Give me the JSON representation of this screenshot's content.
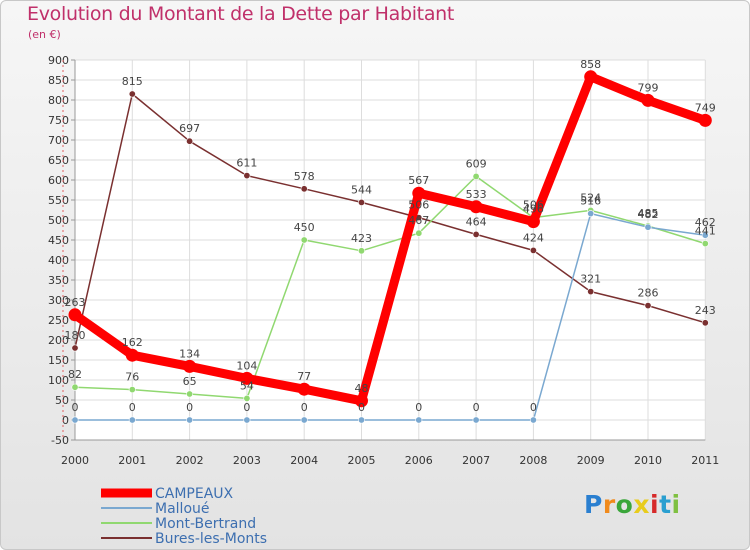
{
  "title": "Evolution du Montant de la Dette par Habitant",
  "unit": "(en €)",
  "logo": {
    "text": "Proxiti",
    "colors": [
      "#2a7fd0",
      "#f08a1c",
      "#3aa63a",
      "#e8cc1c",
      "#d62a2a",
      "#2a9fd0",
      "#7fc041"
    ]
  },
  "chart_data": {
    "type": "line",
    "title": "Evolution du Montant de la Dette par Habitant",
    "ylabel": "(en €)",
    "xlabel": "",
    "ylim": [
      -50,
      900
    ],
    "yticks": [
      -50,
      0,
      50,
      100,
      150,
      200,
      250,
      300,
      350,
      400,
      450,
      500,
      550,
      600,
      650,
      700,
      750,
      800,
      850,
      900
    ],
    "categories": [
      "2000",
      "2001",
      "2002",
      "2003",
      "2004",
      "2005",
      "2006",
      "2007",
      "2008",
      "2009",
      "2010",
      "2011"
    ],
    "series": [
      {
        "name": "Bures-les-Monts",
        "color": "#7a3030",
        "width": 1.5,
        "values": [
          180,
          815,
          697,
          611,
          578,
          544,
          506,
          464,
          424,
          321,
          286,
          243
        ]
      },
      {
        "name": "Mont-Bertrand",
        "color": "#90d870",
        "width": 1.5,
        "values": [
          82,
          76,
          65,
          54,
          450,
          423,
          467,
          609,
          506,
          524,
          485,
          441
        ]
      },
      {
        "name": "Malloué",
        "color": "#7aa8d0",
        "width": 1.5,
        "values": [
          0,
          0,
          0,
          0,
          0,
          0,
          0,
          0,
          0,
          516,
          482,
          462
        ]
      },
      {
        "name": "CAMPEAUX",
        "color": "#ff0000",
        "width": 9,
        "values": [
          263,
          162,
          134,
          104,
          77,
          48,
          567,
          533,
          496,
          858,
          799,
          749
        ]
      }
    ],
    "legend": [
      {
        "name": "CAMPEAUX",
        "color": "#ff0000"
      },
      {
        "name": "Malloué",
        "color": "#7aa8d0"
      },
      {
        "name": "Mont-Bertrand",
        "color": "#90d870"
      },
      {
        "name": "Bures-les-Monts",
        "color": "#7a3030"
      }
    ],
    "legend_position": "bottom-left"
  }
}
